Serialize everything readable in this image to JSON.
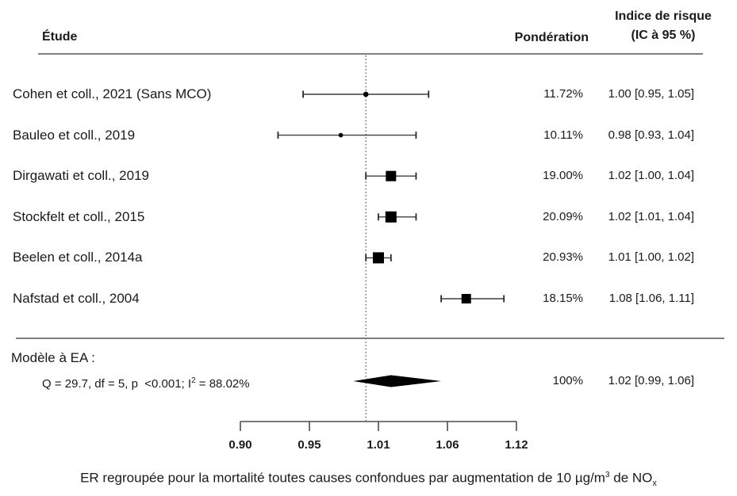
{
  "header": {
    "study_col": "Étude",
    "weight_col": "Pondération",
    "effect_col_line1": "Indice de risque",
    "effect_col_line2": "(IC à 95 %)"
  },
  "chart_data": {
    "type": "forest",
    "x_axis": {
      "scale": "linear",
      "min": 0.9,
      "max": 1.12,
      "ticks": [
        0.9,
        0.955,
        1.01,
        1.065,
        1.12
      ],
      "tick_labels": [
        "0.90",
        "0.95",
        "1.01",
        "1.06",
        "1.12"
      ]
    },
    "refline": 1.0,
    "studies": [
      {
        "label": "Cohen et coll., 2021 (Sans MCO)",
        "weight": "11.72%",
        "weight_value": 11.72,
        "estimate": 1.0,
        "ci_low": 0.95,
        "ci_high": 1.05,
        "ci_text": "1.00 [0.95, 1.05]",
        "marker": "circle"
      },
      {
        "label": "Bauleo et coll., 2019",
        "weight": "10.11%",
        "weight_value": 10.11,
        "estimate": 0.98,
        "ci_low": 0.93,
        "ci_high": 1.04,
        "ci_text": "0.98 [0.93, 1.04]",
        "marker": "circle"
      },
      {
        "label": "Dirgawati et coll., 2019",
        "weight": "19.00%",
        "weight_value": 19.0,
        "estimate": 1.02,
        "ci_low": 1.0,
        "ci_high": 1.04,
        "ci_text": "1.02 [1.00, 1.04]",
        "marker": "square"
      },
      {
        "label": "Stockfelt et coll., 2015",
        "weight": "20.09%",
        "weight_value": 20.09,
        "estimate": 1.02,
        "ci_low": 1.01,
        "ci_high": 1.04,
        "ci_text": "1.02 [1.01, 1.04]",
        "marker": "square"
      },
      {
        "label": "Beelen et coll., 2014a",
        "weight": "20.93%",
        "weight_value": 20.93,
        "estimate": 1.01,
        "ci_low": 1.0,
        "ci_high": 1.02,
        "ci_text": "1.01 [1.00, 1.02]",
        "marker": "square"
      },
      {
        "label": "Nafstad et coll., 2004",
        "weight": "18.15%",
        "weight_value": 18.15,
        "estimate": 1.08,
        "ci_low": 1.06,
        "ci_high": 1.11,
        "ci_text": "1.08 [1.06, 1.11]",
        "marker": "square"
      }
    ],
    "pooled": {
      "model_label": "Modèle à EA :",
      "heterogeneity": {
        "pre_sup": "Q = 29.7, df = 5, p  <0.001; I",
        "sup": "2",
        "post_sup": " = 88.02%"
      },
      "weight": "100%",
      "estimate": 1.02,
      "ci_low": 0.99,
      "ci_high": 1.06,
      "ci_text": "1.02 [0.99, 1.06]"
    }
  },
  "caption": {
    "pre_sup": "ER regroupée pour la mortalité toutes causes confondues par augmentation de 10 µg/m",
    "sup": "3",
    "mid": " de NO",
    "sub": "x"
  },
  "colors": {
    "text": "#1a1a1a",
    "rule": "#7f7f7f",
    "whisker": "#3f3f3f",
    "cap": "#2a2a2a",
    "marker": "#000000",
    "refline": "#555555",
    "axis": "#4d4d4d"
  }
}
